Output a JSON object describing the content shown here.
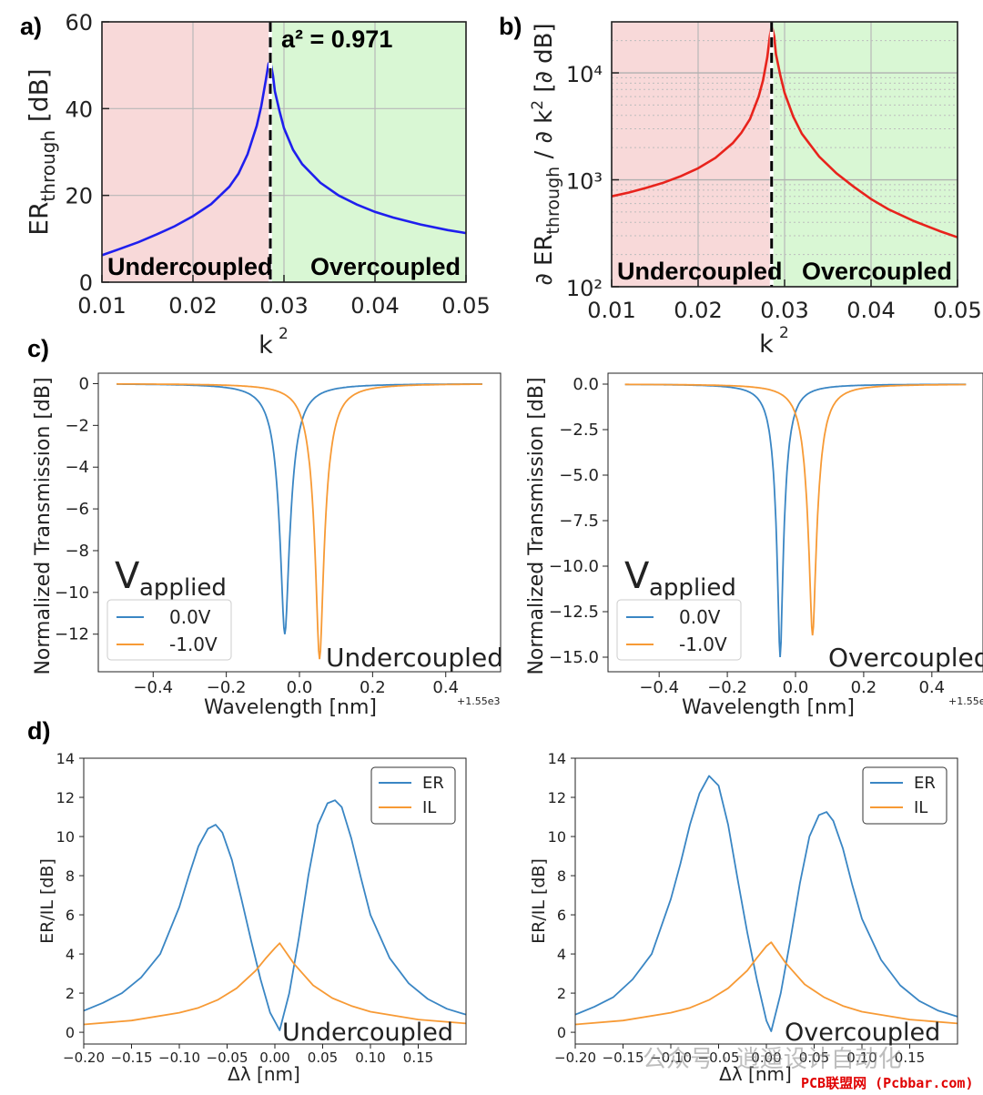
{
  "panel_labels": [
    "a)",
    "b)",
    "c)",
    "d)"
  ],
  "colors": {
    "blue_curve": "#1f1fee",
    "red_curve": "#e8231c",
    "mpl_blue": "#3a86c4",
    "mpl_orange": "#f79a35",
    "under_bg": "#f8d9d9",
    "over_bg": "#d9f7d4"
  },
  "chart_data": [
    {
      "id": "a",
      "type": "line",
      "title": "",
      "annotation": "a² = 0.971",
      "xlabel": "k²",
      "ylabel": "ER_through [dB]",
      "xlim": [
        0.01,
        0.05
      ],
      "ylim": [
        0,
        60
      ],
      "xticks": [
        "0.01",
        "0.02",
        "0.03",
        "0.04",
        "0.05"
      ],
      "yticks": [
        "0",
        "20",
        "40",
        "60"
      ],
      "critical_k2": 0.0285,
      "regions": [
        "Undercoupled",
        "Overcoupled"
      ],
      "series": [
        {
          "name": "ER_through",
          "color": "#1f1fee",
          "x": [
            0.01,
            0.012,
            0.014,
            0.016,
            0.018,
            0.02,
            0.022,
            0.024,
            0.025,
            0.026,
            0.027,
            0.0275,
            0.028,
            0.0283,
            0.0285,
            0.0288,
            0.029,
            0.0295,
            0.03,
            0.031,
            0.032,
            0.034,
            0.036,
            0.038,
            0.04,
            0.042,
            0.045,
            0.048,
            0.05
          ],
          "y": [
            6.2,
            7.7,
            9.2,
            11.0,
            12.9,
            15.2,
            18.0,
            22.0,
            25.0,
            29.5,
            36.0,
            40.5,
            46.5,
            50.3,
            51,
            47.5,
            44,
            39.5,
            35.5,
            30.5,
            27.2,
            22.9,
            20.0,
            17.9,
            16.2,
            14.9,
            13.3,
            12.0,
            11.3
          ]
        }
      ]
    },
    {
      "id": "b",
      "type": "line",
      "title": "",
      "xlabel": "k²",
      "ylabel": "∂ ER_through / ∂ k² [∂ dB]",
      "xlim": [
        0.01,
        0.05
      ],
      "ylim": [
        100,
        30000
      ],
      "yscale": "log",
      "xticks": [
        "0.01",
        "0.02",
        "0.03",
        "0.04",
        "0.05"
      ],
      "yticks": [
        "10²",
        "10³",
        "10⁴"
      ],
      "critical_k2": 0.0285,
      "regions": [
        "Undercoupled",
        "Overcoupled"
      ],
      "series": [
        {
          "name": "dER/dk2",
          "color": "#e8231c",
          "x": [
            0.01,
            0.012,
            0.014,
            0.016,
            0.018,
            0.02,
            0.022,
            0.024,
            0.025,
            0.026,
            0.027,
            0.0275,
            0.028,
            0.0283,
            0.0285,
            0.0288,
            0.029,
            0.0295,
            0.03,
            0.031,
            0.032,
            0.034,
            0.036,
            0.038,
            0.04,
            0.042,
            0.045,
            0.048,
            0.05
          ],
          "y": [
            700,
            760,
            840,
            940,
            1080,
            1280,
            1600,
            2200,
            2750,
            3700,
            6000,
            8500,
            14000,
            22000,
            28000,
            22000,
            15000,
            9500,
            6500,
            3900,
            2700,
            1650,
            1150,
            860,
            660,
            530,
            410,
            330,
            290
          ]
        }
      ]
    },
    {
      "id": "c-left",
      "type": "line",
      "xlabel": "Wavelength [nm]",
      "ylabel": "Normalized Transmission [dB]",
      "offset_label": "+1.55e3",
      "xlim": [
        -0.55,
        0.55
      ],
      "ylim": [
        -13.8,
        0.5
      ],
      "xticks": [
        "−0.4",
        "−0.2",
        "0.0",
        "0.2",
        "0.4"
      ],
      "yticks": [
        "−12",
        "−10",
        "−8",
        "−6",
        "−4",
        "−2",
        "0"
      ],
      "legend_title": "V",
      "legend_title_sub": "applied",
      "corner_label": "Undercoupled",
      "series": [
        {
          "name": "0.0V",
          "color": "#3a86c4",
          "center": -0.04,
          "depth": 12.0,
          "width": 0.035
        },
        {
          "name": "-1.0V",
          "color": "#f79a35",
          "center": 0.055,
          "depth": 13.2,
          "width": 0.035
        }
      ]
    },
    {
      "id": "c-right",
      "type": "line",
      "xlabel": "Wavelength [nm]",
      "ylabel": "Normalized Transmission [dB]",
      "offset_label": "+1.55e",
      "xlim": [
        -0.55,
        0.55
      ],
      "ylim": [
        -15.8,
        0.6
      ],
      "xticks": [
        "−0.4",
        "−0.2",
        "0.0",
        "0.2",
        "0.4"
      ],
      "yticks": [
        "−15.0",
        "−12.5",
        "−10.0",
        "−7.5",
        "−5.0",
        "−2.5",
        "0.0"
      ],
      "legend_title": "V",
      "legend_title_sub": "applied",
      "corner_label": "Overcoupled",
      "series": [
        {
          "name": "0.0V",
          "color": "#3a86c4",
          "center": -0.045,
          "depth": 15.0,
          "width": 0.03
        },
        {
          "name": "-1.0V",
          "color": "#f79a35",
          "center": 0.05,
          "depth": 13.8,
          "width": 0.035
        }
      ]
    },
    {
      "id": "d-left",
      "type": "line",
      "xlabel": "Δλ [nm]",
      "ylabel": "ER/IL [dB]",
      "xlim": [
        -0.2,
        0.2
      ],
      "ylim": [
        -0.6,
        14
      ],
      "xticks": [
        "−0.20",
        "−0.15",
        "−0.10",
        "−0.05",
        "0.00",
        "0.05",
        "0.10",
        "0.15"
      ],
      "yticks": [
        "0",
        "2",
        "4",
        "6",
        "8",
        "10",
        "12",
        "14"
      ],
      "corner_label": "Undercoupled",
      "series": [
        {
          "name": "ER",
          "color": "#3a86c4",
          "x": [
            -0.2,
            -0.18,
            -0.16,
            -0.14,
            -0.12,
            -0.1,
            -0.09,
            -0.08,
            -0.07,
            -0.062,
            -0.055,
            -0.045,
            -0.035,
            -0.025,
            -0.015,
            -0.005,
            0.005,
            0.015,
            0.025,
            0.035,
            0.045,
            0.055,
            0.063,
            0.07,
            0.08,
            0.09,
            0.1,
            0.12,
            0.14,
            0.16,
            0.18,
            0.2
          ],
          "y": [
            1.1,
            1.5,
            2.0,
            2.8,
            4.0,
            6.4,
            8.0,
            9.5,
            10.4,
            10.6,
            10.2,
            8.8,
            6.8,
            4.7,
            2.7,
            1.0,
            0.1,
            2.0,
            4.8,
            8.0,
            10.6,
            11.7,
            11.85,
            11.5,
            9.9,
            7.9,
            6.0,
            3.8,
            2.5,
            1.7,
            1.2,
            0.9
          ]
        },
        {
          "name": "IL",
          "color": "#f79a35",
          "x": [
            -0.2,
            -0.15,
            -0.1,
            -0.08,
            -0.06,
            -0.04,
            -0.02,
            -0.01,
            0.0,
            0.005,
            0.01,
            0.02,
            0.04,
            0.06,
            0.08,
            0.1,
            0.15,
            0.2
          ],
          "y": [
            0.4,
            0.6,
            1.0,
            1.25,
            1.65,
            2.25,
            3.15,
            3.75,
            4.3,
            4.55,
            4.2,
            3.5,
            2.4,
            1.75,
            1.35,
            1.05,
            0.65,
            0.45
          ]
        }
      ]
    },
    {
      "id": "d-right",
      "type": "line",
      "xlabel": "Δλ [nm]",
      "ylabel": "ER/IL [dB]",
      "xlim": [
        -0.2,
        0.2
      ],
      "ylim": [
        -0.6,
        14
      ],
      "xticks": [
        "−0.20",
        "−0.15",
        "−0.10",
        "−0.05",
        "0.00",
        "0.05",
        "0.10",
        "0.15"
      ],
      "yticks": [
        "0",
        "2",
        "4",
        "6",
        "8",
        "10",
        "12",
        "14"
      ],
      "corner_label": "Overcoupled",
      "series": [
        {
          "name": "ER",
          "color": "#3a86c4",
          "x": [
            -0.2,
            -0.18,
            -0.16,
            -0.14,
            -0.12,
            -0.1,
            -0.09,
            -0.08,
            -0.07,
            -0.06,
            -0.05,
            -0.04,
            -0.03,
            -0.02,
            -0.01,
            0.0,
            0.005,
            0.015,
            0.025,
            0.035,
            0.045,
            0.055,
            0.063,
            0.07,
            0.08,
            0.09,
            0.1,
            0.12,
            0.14,
            0.16,
            0.18,
            0.2
          ],
          "y": [
            0.9,
            1.3,
            1.8,
            2.7,
            4.0,
            6.8,
            8.6,
            10.6,
            12.2,
            13.1,
            12.6,
            10.6,
            7.8,
            5.1,
            2.7,
            0.6,
            0.05,
            2.0,
            4.7,
            7.6,
            10.0,
            11.1,
            11.25,
            10.8,
            9.4,
            7.5,
            5.8,
            3.7,
            2.4,
            1.6,
            1.1,
            0.8
          ]
        },
        {
          "name": "IL",
          "color": "#f79a35",
          "x": [
            -0.2,
            -0.15,
            -0.1,
            -0.08,
            -0.06,
            -0.04,
            -0.02,
            -0.01,
            0.0,
            0.005,
            0.01,
            0.02,
            0.04,
            0.06,
            0.08,
            0.1,
            0.15,
            0.2
          ],
          "y": [
            0.4,
            0.6,
            1.0,
            1.25,
            1.65,
            2.25,
            3.15,
            3.8,
            4.4,
            4.6,
            4.25,
            3.55,
            2.45,
            1.8,
            1.35,
            1.05,
            0.65,
            0.45
          ]
        }
      ]
    }
  ],
  "watermark": {
    "text": "公众号 · 逍遥设计自动化",
    "brand": "PCB联盟网 (Pcbbar.com)"
  }
}
